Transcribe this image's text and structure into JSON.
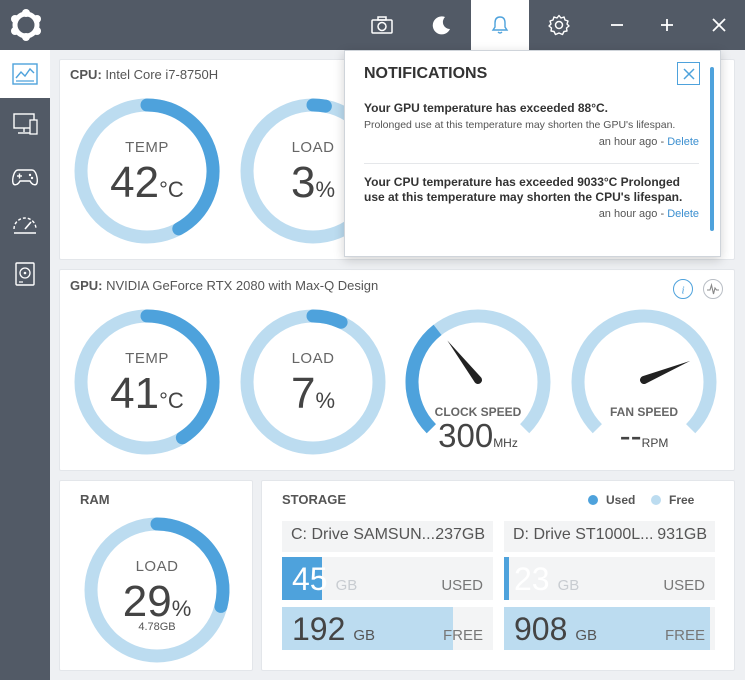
{
  "colors": {
    "accent": "#4ea2dc",
    "track": "#bcdcf0",
    "titlebar": "#525a66"
  },
  "titlebar": {
    "buttons": [
      "camera-icon",
      "moon-icon",
      "bell-icon",
      "gear-icon",
      "minimize-icon",
      "maximize-icon",
      "close-icon"
    ],
    "active": "bell-icon"
  },
  "sidebar": {
    "items": [
      "dashboard-icon",
      "monitor-icon",
      "gamepad-icon",
      "speedometer-icon",
      "storage-icon"
    ],
    "active": "dashboard-icon"
  },
  "cpu": {
    "title_prefix": "CPU:",
    "title_name": "Intel Core i7-8750H",
    "temp": {
      "label": "TEMP",
      "value": "42",
      "unit": "°C",
      "fraction": 0.42
    },
    "load": {
      "label": "LOAD",
      "value": "3",
      "unit": "%",
      "fraction": 0.03
    }
  },
  "gpu": {
    "title_prefix": "GPU:",
    "title_name": "NVIDIA GeForce RTX 2080 with Max-Q Design",
    "temp": {
      "label": "TEMP",
      "value": "41",
      "unit": "°C",
      "fraction": 0.41
    },
    "load": {
      "label": "LOAD",
      "value": "7",
      "unit": "%",
      "fraction": 0.07
    },
    "clock": {
      "label": "CLOCK SPEED",
      "value": "300",
      "unit": "MHz",
      "fraction": 0.36
    },
    "fan": {
      "label": "FAN SPEED",
      "value": "--",
      "unit": "RPM",
      "fraction": 0.75
    }
  },
  "ram": {
    "title": "RAM",
    "label": "LOAD",
    "value": "29",
    "unit": "%",
    "sub": "4.78GB",
    "fraction": 0.29
  },
  "storage": {
    "title": "STORAGE",
    "legend_used": "Used",
    "legend_free": "Free",
    "drives": [
      {
        "name": "C: Drive SAMSUN...",
        "size": "237GB",
        "used": "45",
        "free": "192",
        "unit": "GB",
        "used_label": "USED",
        "free_label": "FREE",
        "used_fraction": 0.19
      },
      {
        "name": "D: Drive ST1000L...",
        "size": "931GB",
        "used": "23",
        "free": "908",
        "unit": "GB",
        "used_label": "USED",
        "free_label": "FREE",
        "used_fraction": 0.025
      }
    ]
  },
  "notifications": {
    "title": "NOTIFICATIONS",
    "items": [
      {
        "heading": "Your GPU temperature has exceeded 88°C.",
        "body": "Prolonged use at this temperature may shorten the GPU's lifespan.",
        "time": "an hour ago",
        "sep": "-",
        "action": "Delete"
      },
      {
        "heading": "Your CPU temperature has exceeded 9033°C Prolonged use at this temperature may shorten the CPU's lifespan.",
        "body": "",
        "time": "an hour ago",
        "sep": "-",
        "action": "Delete"
      }
    ]
  }
}
